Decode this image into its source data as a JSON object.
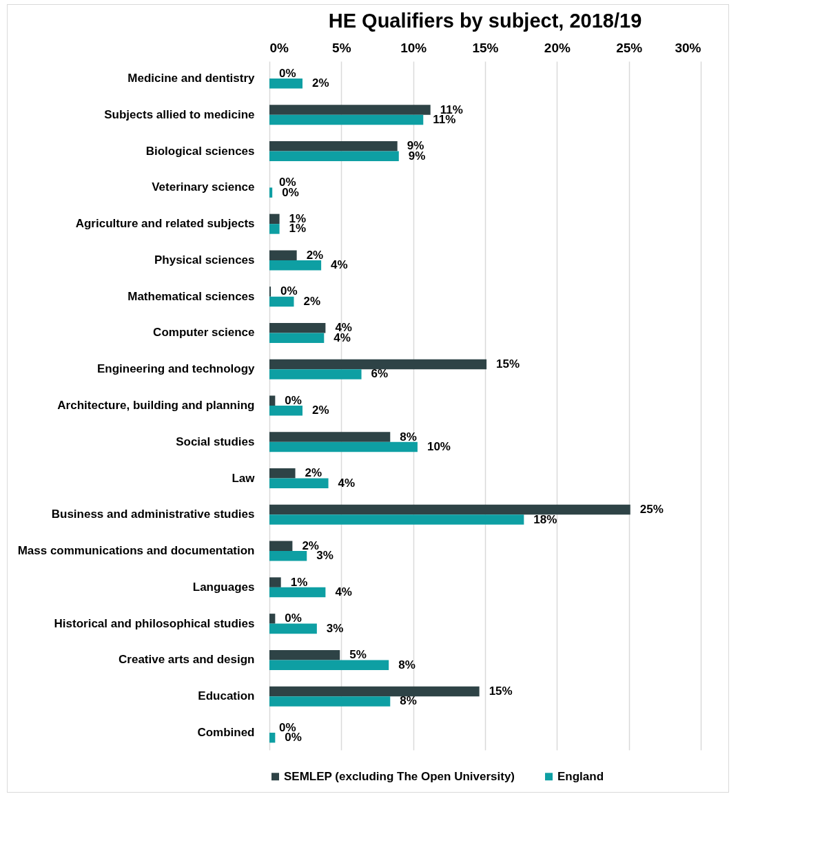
{
  "chart_data": {
    "type": "bar",
    "title": "HE Qualifiers by subject, 2018/19",
    "orientation": "horizontal",
    "categories": [
      "Medicine and dentistry",
      "Subjects allied to medicine",
      "Biological sciences",
      "Veterinary science",
      "Agriculture and related subjects",
      "Physical sciences",
      "Mathematical sciences",
      "Computer science",
      "Engineering and technology",
      "Architecture, building and planning",
      "Social studies",
      "Law",
      "Business and administrative studies",
      "Mass communications and documentation",
      "Languages",
      "Historical and philosophical studies",
      "Creative arts and design",
      "Education",
      "Combined"
    ],
    "series": [
      {
        "name": "SEMLEP (excluding The Open University)",
        "color": "#2e4346",
        "values": [
          0,
          11.2,
          8.9,
          0,
          0.7,
          1.9,
          0.1,
          3.9,
          15.1,
          0.4,
          8.4,
          1.8,
          25.1,
          1.6,
          0.8,
          0.4,
          4.9,
          14.6,
          0
        ],
        "value_labels": [
          "0%",
          "11%",
          "9%",
          "0%",
          "1%",
          "2%",
          "0%",
          "4%",
          "15%",
          "0%",
          "8%",
          "2%",
          "25%",
          "2%",
          "1%",
          "0%",
          "5%",
          "15%",
          "0%"
        ]
      },
      {
        "name": "England",
        "color": "#0e9fa3",
        "values": [
          2.3,
          10.7,
          9.0,
          0.2,
          0.7,
          3.6,
          1.7,
          3.8,
          6.4,
          2.3,
          10.3,
          4.1,
          17.7,
          2.6,
          3.9,
          3.3,
          8.3,
          8.4,
          0.4
        ],
        "value_labels": [
          "2%",
          "11%",
          "9%",
          "0%",
          "1%",
          "4%",
          "2%",
          "4%",
          "6%",
          "2%",
          "10%",
          "4%",
          "18%",
          "3%",
          "4%",
          "3%",
          "8%",
          "8%",
          "0%"
        ]
      }
    ],
    "xlim": [
      0,
      30
    ],
    "xticks": [
      {
        "value": 0,
        "label": "0%"
      },
      {
        "value": 5,
        "label": "5%"
      },
      {
        "value": 10,
        "label": "10%"
      },
      {
        "value": 15,
        "label": "15%"
      },
      {
        "value": 20,
        "label": "20%"
      },
      {
        "value": 25,
        "label": "25%"
      },
      {
        "value": 30,
        "label": "30%"
      }
    ],
    "grid": "x",
    "legend": "bottom"
  }
}
